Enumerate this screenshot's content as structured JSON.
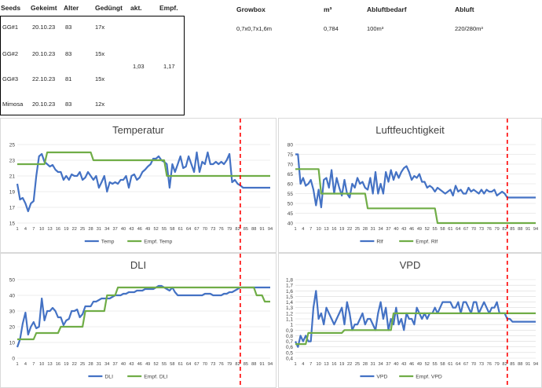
{
  "table": {
    "headers": {
      "seeds": "Seeds",
      "gekeimt": "Gekeimt",
      "alter": "Alter",
      "geduengt": "Gedüngt",
      "akt": "akt.",
      "empf": "Empf."
    },
    "rows": [
      {
        "name": "GG#1",
        "date": "20.10.23",
        "age": "83",
        "fert": "17x"
      },
      {
        "name": "GG#2",
        "date": "20.10.23",
        "age": "83",
        "fert": "15x"
      },
      {
        "name": "GG#3",
        "date": "22.10.23",
        "age": "81",
        "fert": "15x"
      },
      {
        "name": "Mimosa",
        "date": "20.10.23",
        "age": "83",
        "fert": "12x"
      }
    ],
    "akt_value": "1,03",
    "empf_value": "1,17"
  },
  "growbox": {
    "headers": {
      "growbox": "Growbox",
      "m3": "m³",
      "abluftbedarf": "Abluftbedarf",
      "abluft": "Abluft"
    },
    "values": {
      "growbox": "0,7x0,7x1,6m",
      "m3": "0,784",
      "abluftbedarf": "100m³",
      "abluft": "220/280m³"
    }
  },
  "colors": {
    "actual": "#4472C4",
    "recommended": "#70AD47",
    "marker": "#FF0000",
    "grid": "#D9D9D9"
  },
  "x_tick_labels": [
    "1",
    "4",
    "7",
    "10",
    "13",
    "16",
    "19",
    "22",
    "25",
    "28",
    "31",
    "34",
    "37",
    "40",
    "43",
    "46",
    "49",
    "52",
    "55",
    "58",
    "61",
    "64",
    "67",
    "70",
    "73",
    "76",
    "79",
    "82",
    "85",
    "88",
    "91",
    "94"
  ],
  "chart_data": [
    {
      "type": "line",
      "title": "Temperatur",
      "ylim": [
        15,
        25
      ],
      "yticks": [
        15,
        17,
        19,
        21,
        23,
        25
      ],
      "x_range": [
        1,
        94
      ],
      "marker_x": 83,
      "series": [
        {
          "name": "Temp",
          "color": "#4472C4",
          "x": [
            1,
            2,
            3,
            4,
            5,
            6,
            7,
            8,
            9,
            10,
            11,
            12,
            13,
            14,
            15,
            16,
            17,
            18,
            19,
            20,
            21,
            22,
            23,
            24,
            25,
            26,
            27,
            28,
            29,
            30,
            31,
            32,
            33,
            34,
            35,
            36,
            37,
            38,
            39,
            40,
            41,
            42,
            43,
            44,
            45,
            46,
            47,
            48,
            49,
            50,
            51,
            52,
            53,
            54,
            55,
            56,
            57,
            58,
            59,
            60,
            61,
            62,
            63,
            64,
            65,
            66,
            67,
            68,
            69,
            70,
            71,
            72,
            73,
            74,
            75,
            76,
            77,
            78,
            79,
            80,
            81,
            82,
            83,
            84,
            85,
            86,
            87,
            88,
            89,
            90,
            91,
            92,
            93,
            94
          ],
          "y": [
            20,
            18,
            18.2,
            17.5,
            16.5,
            17.5,
            17.8,
            21,
            23.5,
            23.8,
            22.8,
            22.5,
            22.2,
            22.4,
            21.8,
            21.5,
            21.5,
            20.5,
            21,
            20.5,
            21.2,
            21,
            21,
            21.5,
            20.5,
            20.8,
            21.5,
            21,
            20.5,
            21,
            19.5,
            20.2,
            21,
            19,
            20.2,
            20,
            20.2,
            20,
            20.5,
            20.5,
            21,
            19.5,
            21,
            21.2,
            20.5,
            20.8,
            21.5,
            21.8,
            22.2,
            22.5,
            23.2,
            23.2,
            23.5,
            23,
            22.8,
            22.5,
            19.5,
            22.5,
            21.5,
            22.5,
            23.5,
            22,
            22.2,
            23.5,
            22.5,
            21.5,
            24,
            21.5,
            22.8,
            22.5,
            24,
            22.5,
            22.5,
            22.8,
            22.5,
            22.8,
            22.5,
            23,
            23.8,
            20.2,
            20.5,
            20,
            19.8,
            19.5,
            19.5,
            19.5,
            19.5,
            19.5,
            19.5,
            19.5,
            19.5,
            19.5,
            19.5,
            19.5
          ]
        },
        {
          "name": "Empf. Temp",
          "color": "#70AD47",
          "x": [
            1,
            11,
            12,
            28,
            29,
            55,
            56,
            94
          ],
          "y": [
            22.5,
            22.5,
            24,
            24,
            23,
            23,
            21,
            21
          ]
        }
      ]
    },
    {
      "type": "line",
      "title": "Luftfeuchtigkeit",
      "ylim": [
        40,
        80
      ],
      "yticks": [
        40,
        45,
        50,
        55,
        60,
        65,
        70,
        75,
        80
      ],
      "x_range": [
        1,
        94
      ],
      "marker_x": 83,
      "series": [
        {
          "name": "Rlf",
          "color": "#4472C4",
          "x": [
            1,
            2,
            3,
            4,
            5,
            6,
            7,
            8,
            9,
            10,
            11,
            12,
            13,
            14,
            15,
            16,
            17,
            18,
            19,
            20,
            21,
            22,
            23,
            24,
            25,
            26,
            27,
            28,
            29,
            30,
            31,
            32,
            33,
            34,
            35,
            36,
            37,
            38,
            39,
            40,
            41,
            42,
            43,
            44,
            45,
            46,
            47,
            48,
            49,
            50,
            51,
            52,
            53,
            54,
            55,
            56,
            57,
            58,
            59,
            60,
            61,
            62,
            63,
            64,
            65,
            66,
            67,
            68,
            69,
            70,
            71,
            72,
            73,
            74,
            75,
            76,
            77,
            78,
            79,
            80,
            81,
            82,
            83,
            84,
            85,
            86,
            87,
            88,
            89,
            90,
            91,
            92,
            93,
            94
          ],
          "y": [
            75,
            75,
            60,
            63,
            59,
            60,
            62,
            57,
            49,
            57,
            48,
            62,
            63,
            58,
            67,
            55,
            63,
            58,
            54,
            62,
            55,
            53,
            60,
            58,
            63,
            60,
            61,
            58,
            57,
            63,
            55,
            66,
            55,
            60,
            55,
            66,
            61,
            67,
            62,
            66,
            63,
            66,
            68,
            69,
            66,
            62,
            64,
            63,
            65,
            61,
            61,
            58,
            59,
            58,
            56,
            58,
            57,
            56,
            55,
            56,
            57,
            54,
            59,
            56,
            57,
            55,
            55,
            58,
            56,
            57,
            56,
            55,
            57,
            55,
            57,
            56,
            56,
            57,
            54,
            55,
            56,
            55,
            53,
            53,
            53,
            53,
            53,
            53,
            53,
            53,
            53,
            53,
            53,
            53
          ]
        },
        {
          "name": "Empf. Rlf",
          "color": "#70AD47",
          "x": [
            1,
            10,
            11,
            28,
            29,
            55,
            56,
            94
          ],
          "y": [
            67.5,
            67.5,
            55,
            55,
            47.5,
            47.5,
            40,
            40
          ]
        }
      ]
    },
    {
      "type": "line",
      "title": "DLI",
      "ylim": [
        0,
        50
      ],
      "yticks": [
        0,
        10,
        20,
        30,
        40,
        50
      ],
      "x_range": [
        1,
        94
      ],
      "marker_x": 83,
      "series": [
        {
          "name": "DLI",
          "color": "#4472C4",
          "x": [
            1,
            2,
            3,
            4,
            5,
            6,
            7,
            8,
            9,
            10,
            11,
            12,
            13,
            14,
            15,
            16,
            17,
            18,
            19,
            20,
            21,
            22,
            23,
            24,
            25,
            26,
            27,
            28,
            29,
            30,
            31,
            32,
            33,
            34,
            35,
            36,
            37,
            38,
            39,
            40,
            41,
            42,
            43,
            44,
            45,
            46,
            47,
            48,
            49,
            50,
            51,
            52,
            53,
            54,
            55,
            56,
            57,
            58,
            59,
            60,
            61,
            62,
            63,
            64,
            65,
            66,
            67,
            68,
            69,
            70,
            71,
            72,
            73,
            74,
            75,
            76,
            77,
            78,
            79,
            80,
            81,
            82,
            83,
            84,
            85,
            86,
            87,
            88,
            89,
            90,
            91,
            92,
            93,
            94
          ],
          "y": [
            7,
            12,
            22,
            29,
            15,
            20,
            23,
            19,
            20,
            38,
            24,
            30,
            30,
            32,
            30,
            26,
            26,
            21,
            24,
            25,
            30,
            30,
            31,
            26,
            28,
            33,
            33,
            33,
            36,
            36,
            37,
            38,
            38,
            38,
            38,
            39,
            40,
            40,
            40,
            41,
            41,
            42,
            42,
            42,
            43,
            43,
            43,
            44,
            44,
            44,
            44,
            45,
            46,
            46,
            45,
            44,
            43,
            45,
            42,
            40,
            40,
            40,
            40,
            40,
            40,
            40,
            40,
            40,
            40,
            41,
            41,
            41,
            40,
            40,
            40,
            40,
            41,
            41,
            42,
            42,
            43,
            44,
            45,
            45,
            45,
            45,
            45,
            45,
            45,
            45,
            45,
            45,
            45,
            45
          ]
        },
        {
          "name": "Empf. DLI",
          "color": "#70AD47",
          "x": [
            1,
            7,
            8,
            16,
            17,
            25,
            26,
            33,
            34,
            37,
            38,
            49,
            50,
            88,
            89,
            91,
            92,
            94
          ],
          "y": [
            12,
            12,
            16,
            16,
            20,
            20,
            30,
            30,
            40,
            40,
            45,
            45,
            45,
            45,
            40,
            40,
            36,
            36
          ]
        }
      ]
    },
    {
      "type": "line",
      "title": "VPD",
      "ylim": [
        0.4,
        1.8
      ],
      "yticks": [
        0.4,
        0.5,
        0.6,
        0.7,
        0.8,
        0.9,
        1,
        1.1,
        1.2,
        1.3,
        1.4,
        1.5,
        1.6,
        1.7,
        1.8
      ],
      "ytick_labels": [
        "0,4",
        "0,5",
        "0,6",
        "0,7",
        "0,8",
        "0,9",
        "1",
        "1,1",
        "1,2",
        "1,3",
        "1,4",
        "1,5",
        "1,6",
        "1,7",
        "1,8"
      ],
      "x_range": [
        1,
        94
      ],
      "marker_x": 83,
      "series": [
        {
          "name": "VPD",
          "color": "#4472C4",
          "x": [
            1,
            2,
            3,
            4,
            5,
            6,
            7,
            8,
            9,
            10,
            11,
            12,
            13,
            14,
            15,
            16,
            17,
            18,
            19,
            20,
            21,
            22,
            23,
            24,
            25,
            26,
            27,
            28,
            29,
            30,
            31,
            32,
            33,
            34,
            35,
            36,
            37,
            38,
            39,
            40,
            41,
            42,
            43,
            44,
            45,
            46,
            47,
            48,
            49,
            50,
            51,
            52,
            53,
            54,
            55,
            56,
            57,
            58,
            59,
            60,
            61,
            62,
            63,
            64,
            65,
            66,
            67,
            68,
            69,
            70,
            71,
            72,
            73,
            74,
            75,
            76,
            77,
            78,
            79,
            80,
            81,
            82,
            83,
            84,
            85,
            86,
            87,
            88,
            89,
            90,
            91,
            92,
            93,
            94
          ],
          "y": [
            0.7,
            0.6,
            0.8,
            0.7,
            0.8,
            0.7,
            0.7,
            1.3,
            1.6,
            1.1,
            1.2,
            1,
            1.3,
            1.2,
            1.1,
            1,
            1.1,
            1.2,
            1.3,
            1,
            1.4,
            1.2,
            0.9,
            1,
            1,
            1.1,
            1.2,
            1,
            1.1,
            1.1,
            1,
            0.9,
            1.2,
            1.4,
            1.1,
            1.3,
            0.9,
            1.1,
            1,
            1.3,
            1,
            1.1,
            0.9,
            1.2,
            1.1,
            1.1,
            1,
            1.3,
            1.2,
            1.1,
            1.2,
            1.1,
            1.2,
            1.2,
            1.3,
            1.2,
            1.3,
            1.4,
            1.4,
            1.4,
            1.4,
            1.3,
            1.3,
            1.4,
            1.2,
            1.4,
            1.4,
            1.3,
            1.2,
            1.4,
            1.4,
            1.2,
            1.3,
            1.4,
            1.3,
            1.2,
            1.3,
            1.3,
            1.4,
            1.2,
            1.2,
            1.2,
            1.1,
            1.1,
            1.05,
            1.05,
            1.05,
            1.05,
            1.05,
            1.05,
            1.05,
            1.05,
            1.05,
            1.05
          ]
        },
        {
          "name": "Empf. VPD",
          "color": "#70AD47",
          "x": [
            1,
            5,
            6,
            19,
            20,
            38,
            39,
            94
          ],
          "y": [
            0.65,
            0.65,
            0.85,
            0.85,
            0.9,
            0.9,
            1.2,
            1.2
          ]
        }
      ]
    }
  ]
}
